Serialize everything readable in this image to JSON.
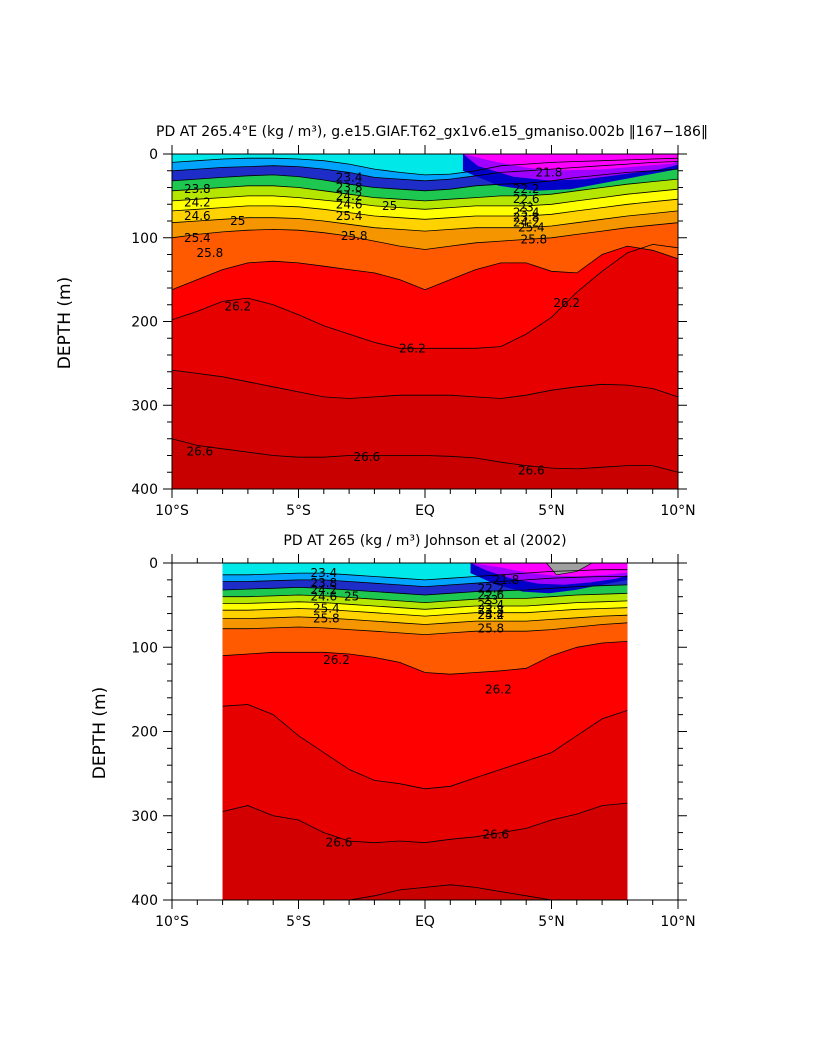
{
  "chart_data": [
    {
      "type": "contour",
      "title": "PD AT 265.4°E (kg / m³), g.e15.GIAF.T62_gx1v6.e15_gmaniso.002b ‖167−186‖",
      "ylabel": "DEPTH (m)",
      "xlabel": "",
      "xlim": [
        -10,
        10
      ],
      "ylim": [
        400,
        0
      ],
      "x_ticks": [
        {
          "value": -10,
          "label": "10°S"
        },
        {
          "value": -5,
          "label": "5°S"
        },
        {
          "value": 0,
          "label": "EQ"
        },
        {
          "value": 5,
          "label": "5°N"
        },
        {
          "value": 10,
          "label": "10°N"
        }
      ],
      "y_ticks": [
        {
          "value": 0,
          "label": "0"
        },
        {
          "value": 100,
          "label": "100"
        },
        {
          "value": 200,
          "label": "200"
        },
        {
          "value": 300,
          "label": "300"
        },
        {
          "value": 400,
          "label": "400"
        }
      ],
      "x": [
        -10,
        -9,
        -8,
        -7,
        -6,
        -5,
        -4,
        -3,
        -2,
        -1,
        0,
        1,
        2,
        3,
        4,
        5,
        6,
        7,
        8,
        9,
        10
      ],
      "contours": [
        {
          "level": 23.0,
          "color": "#00e8e8",
          "depth": [
            10,
            8,
            6,
            5,
            5,
            6,
            8,
            12,
            18,
            22,
            25,
            24,
            20,
            14,
            12,
            10,
            9,
            8,
            7,
            6,
            5
          ]
        },
        {
          "level": 23.4,
          "color": "#00a4ff",
          "depth": [
            20,
            18,
            16,
            15,
            14,
            15,
            18,
            22,
            28,
            30,
            32,
            30,
            26,
            22,
            20,
            18,
            16,
            14,
            12,
            10,
            9
          ]
        },
        {
          "level": 23.8,
          "color": "#1e2cc8",
          "depth": [
            32,
            30,
            28,
            26,
            25,
            27,
            31,
            36,
            40,
            42,
            44,
            42,
            38,
            36,
            35,
            32,
            28,
            25,
            22,
            20,
            18
          ]
        },
        {
          "level": 24.2,
          "color": "#1ec850",
          "depth": [
            44,
            42,
            40,
            38,
            38,
            40,
            44,
            48,
            52,
            54,
            56,
            54,
            52,
            50,
            50,
            48,
            44,
            40,
            36,
            33,
            30
          ]
        },
        {
          "level": 24.6,
          "color": "#b4e600",
          "depth": [
            56,
            54,
            52,
            50,
            50,
            52,
            55,
            58,
            62,
            64,
            66,
            64,
            62,
            62,
            62,
            60,
            56,
            52,
            48,
            45,
            42
          ]
        },
        {
          "level": 25.0,
          "color": "#ffff00",
          "depth": [
            68,
            66,
            64,
            62,
            62,
            63,
            66,
            70,
            74,
            76,
            78,
            76,
            74,
            74,
            74,
            72,
            68,
            64,
            60,
            57,
            54
          ]
        },
        {
          "level": 25.4,
          "color": "#ffd200",
          "depth": [
            82,
            80,
            78,
            76,
            76,
            77,
            80,
            84,
            88,
            90,
            92,
            90,
            88,
            88,
            88,
            86,
            82,
            78,
            74,
            71,
            68
          ]
        },
        {
          "level": 25.8,
          "color": "#f59600",
          "depth": [
            100,
            96,
            93,
            91,
            90,
            91,
            94,
            98,
            104,
            110,
            114,
            110,
            106,
            104,
            102,
            100,
            96,
            92,
            88,
            85,
            82
          ]
        },
        {
          "level": 26.2,
          "color": "#ff5a00",
          "depth": [
            162,
            150,
            138,
            130,
            128,
            130,
            134,
            138,
            142,
            150,
            162,
            150,
            138,
            130,
            130,
            140,
            142,
            120,
            110,
            115,
            125
          ]
        },
        {
          "level": 26.4,
          "color": "#ff0000",
          "depth": [
            198,
            188,
            176,
            172,
            180,
            192,
            205,
            215,
            225,
            232,
            232,
            232,
            232,
            230,
            215,
            195,
            165,
            140,
            118,
            108,
            112
          ]
        },
        {
          "level": 26.6,
          "color": "#e60000",
          "depth": [
            258,
            262,
            266,
            272,
            278,
            284,
            290,
            292,
            290,
            288,
            288,
            288,
            290,
            292,
            288,
            282,
            278,
            275,
            276,
            280,
            290
          ]
        },
        {
          "level": 26.8,
          "color": "#d20000",
          "depth": [
            340,
            348,
            352,
            356,
            360,
            362,
            362,
            360,
            360,
            360,
            360,
            361,
            363,
            368,
            372,
            375,
            376,
            374,
            372,
            372,
            380
          ]
        }
      ],
      "contour_labels": [
        {
          "text": "23.8",
          "x": -9.0,
          "y": 42
        },
        {
          "text": "24.2",
          "x": -9.0,
          "y": 58
        },
        {
          "text": "24.6",
          "x": -9.0,
          "y": 74
        },
        {
          "text": "25",
          "x": -7.4,
          "y": 80
        },
        {
          "text": "25.4",
          "x": -9.0,
          "y": 100
        },
        {
          "text": "25.8",
          "x": -8.5,
          "y": 118
        },
        {
          "text": "23.4",
          "x": -3.0,
          "y": 28
        },
        {
          "text": "23.8",
          "x": -3.0,
          "y": 40
        },
        {
          "text": "24.2",
          "x": -3.0,
          "y": 50
        },
        {
          "text": "24.6",
          "x": -3.0,
          "y": 60
        },
        {
          "text": "25",
          "x": -1.4,
          "y": 62
        },
        {
          "text": "25.4",
          "x": -3.0,
          "y": 74
        },
        {
          "text": "25.8",
          "x": -2.8,
          "y": 98
        },
        {
          "text": "21.8",
          "x": 4.9,
          "y": 22
        },
        {
          "text": "22.2",
          "x": 4.0,
          "y": 42
        },
        {
          "text": "22.6",
          "x": 4.0,
          "y": 54
        },
        {
          "text": "23",
          "x": 4.0,
          "y": 64
        },
        {
          "text": "23.4",
          "x": 4.0,
          "y": 70
        },
        {
          "text": "23.8",
          "x": 4.0,
          "y": 76
        },
        {
          "text": "24.2",
          "x": 4.0,
          "y": 82
        },
        {
          "text": "25.4",
          "x": 4.2,
          "y": 88
        },
        {
          "text": "25.8",
          "x": 4.3,
          "y": 102
        },
        {
          "text": "26.2",
          "x": -7.4,
          "y": 182
        },
        {
          "text": "26.2",
          "x": -0.5,
          "y": 232
        },
        {
          "text": "26.2",
          "x": 5.6,
          "y": 178
        },
        {
          "text": "26.6",
          "x": -8.9,
          "y": 355
        },
        {
          "text": "26.6",
          "x": -2.3,
          "y": 362
        },
        {
          "text": "26.6",
          "x": 4.2,
          "y": 378
        }
      ]
    },
    {
      "type": "contour",
      "title": "PD AT 265 (kg / m³) Johnson et al (2002)",
      "ylabel": "DEPTH (m)",
      "xlabel": "",
      "xlim": [
        -10,
        10
      ],
      "ylim": [
        400,
        0
      ],
      "data_extent": [
        -8,
        8
      ],
      "x_ticks": [
        {
          "value": -10,
          "label": "10°S"
        },
        {
          "value": -5,
          "label": "5°S"
        },
        {
          "value": 0,
          "label": "EQ"
        },
        {
          "value": 5,
          "label": "5°N"
        },
        {
          "value": 10,
          "label": "10°N"
        }
      ],
      "y_ticks": [
        {
          "value": 0,
          "label": "0"
        },
        {
          "value": 100,
          "label": "100"
        },
        {
          "value": 200,
          "label": "200"
        },
        {
          "value": 300,
          "label": "300"
        },
        {
          "value": 400,
          "label": "400"
        }
      ],
      "x": [
        -8,
        -7,
        -6,
        -5,
        -4,
        -3,
        -2,
        -1,
        0,
        1,
        2,
        3,
        4,
        5,
        6,
        7,
        8
      ],
      "contours": [
        {
          "level": 23.0,
          "color": "#00e8e8",
          "depth": [
            14,
            14,
            13,
            12,
            12,
            14,
            16,
            18,
            20,
            18,
            16,
            14,
            12,
            10,
            9,
            8,
            8
          ]
        },
        {
          "level": 23.4,
          "color": "#00a4ff",
          "depth": [
            22,
            22,
            21,
            20,
            20,
            22,
            24,
            26,
            28,
            26,
            24,
            22,
            20,
            18,
            17,
            16,
            16
          ]
        },
        {
          "level": 23.8,
          "color": "#1e2cc8",
          "depth": [
            32,
            31,
            30,
            29,
            30,
            32,
            34,
            36,
            38,
            36,
            34,
            33,
            32,
            30,
            28,
            27,
            26
          ]
        },
        {
          "level": 24.2,
          "color": "#1ec850",
          "depth": [
            40,
            40,
            39,
            38,
            39,
            41,
            43,
            45,
            47,
            45,
            43,
            42,
            42,
            40,
            38,
            37,
            36
          ]
        },
        {
          "level": 24.6,
          "color": "#b4e600",
          "depth": [
            48,
            48,
            47,
            46,
            47,
            49,
            51,
            53,
            55,
            53,
            51,
            51,
            51,
            49,
            47,
            46,
            45
          ]
        },
        {
          "level": 25.0,
          "color": "#ffff00",
          "depth": [
            56,
            56,
            55,
            54,
            55,
            57,
            59,
            61,
            63,
            61,
            59,
            59,
            59,
            57,
            55,
            54,
            53
          ]
        },
        {
          "level": 25.4,
          "color": "#ffd200",
          "depth": [
            66,
            66,
            65,
            64,
            65,
            67,
            69,
            71,
            73,
            71,
            69,
            69,
            69,
            67,
            65,
            63,
            62
          ]
        },
        {
          "level": 25.8,
          "color": "#f59600",
          "depth": [
            78,
            78,
            77,
            76,
            77,
            79,
            81,
            83,
            85,
            83,
            81,
            81,
            81,
            79,
            76,
            73,
            71
          ]
        },
        {
          "level": 26.2,
          "color": "#ff5a00",
          "depth": [
            110,
            108,
            106,
            106,
            106,
            108,
            112,
            118,
            130,
            132,
            130,
            128,
            125,
            110,
            100,
            95,
            93
          ]
        },
        {
          "level": 26.4,
          "color": "#ff0000",
          "depth": [
            170,
            168,
            180,
            205,
            225,
            245,
            258,
            262,
            268,
            265,
            255,
            245,
            235,
            225,
            205,
            185,
            175
          ]
        },
        {
          "level": 26.6,
          "color": "#e60000",
          "depth": [
            295,
            288,
            300,
            305,
            320,
            330,
            332,
            330,
            332,
            328,
            325,
            320,
            315,
            305,
            298,
            288,
            285
          ]
        },
        {
          "level": 26.8,
          "color": "#d20000",
          "depth": [
            400,
            400,
            400,
            400,
            400,
            400,
            395,
            388,
            385,
            382,
            385,
            390,
            395,
            400,
            400,
            400,
            400
          ]
        }
      ],
      "contour_labels": [
        {
          "text": "23.4",
          "x": -4.0,
          "y": 12
        },
        {
          "text": "23.8",
          "x": -4.0,
          "y": 24
        },
        {
          "text": "24.2",
          "x": -4.0,
          "y": 32
        },
        {
          "text": "24.6",
          "x": -4.0,
          "y": 40
        },
        {
          "text": "25",
          "x": -2.9,
          "y": 40
        },
        {
          "text": "25.4",
          "x": -3.9,
          "y": 54
        },
        {
          "text": "25.8",
          "x": -3.9,
          "y": 66
        },
        {
          "text": "21.8",
          "x": 3.2,
          "y": 20
        },
        {
          "text": "22.2",
          "x": 2.6,
          "y": 30
        },
        {
          "text": "22.6",
          "x": 2.6,
          "y": 38
        },
        {
          "text": "23",
          "x": 2.6,
          "y": 44
        },
        {
          "text": "23.4",
          "x": 2.6,
          "y": 50
        },
        {
          "text": "23.8",
          "x": 2.6,
          "y": 56
        },
        {
          "text": "24.2",
          "x": 2.6,
          "y": 62
        },
        {
          "text": "25.4",
          "x": 2.6,
          "y": 62
        },
        {
          "text": "25.8",
          "x": 2.6,
          "y": 78
        },
        {
          "text": "26.2",
          "x": -3.5,
          "y": 115
        },
        {
          "text": "26.2",
          "x": 2.9,
          "y": 150
        },
        {
          "text": "26.6",
          "x": -3.4,
          "y": 332
        },
        {
          "text": "26.6",
          "x": 2.8,
          "y": 322
        }
      ],
      "surface_patch_color": "#a0a0a0"
    }
  ],
  "colors": {
    "deepest": "#c80000",
    "magenta": "#ff00ff",
    "violet": "#a000ff",
    "navy": "#0000c8"
  }
}
